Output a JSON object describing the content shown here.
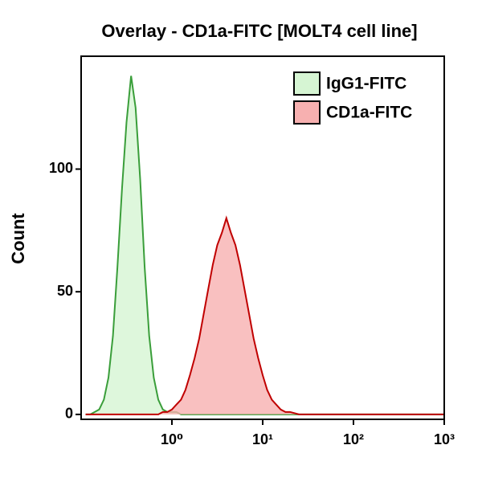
{
  "chart_data": {
    "type": "area",
    "title": "Overlay - CD1a-FITC [MOLT4 cell line]",
    "y_label": "Count",
    "x_scale": "log",
    "xlim": [
      0.1,
      1000
    ],
    "xticks": [
      {
        "value": 1,
        "label": "10⁰"
      },
      {
        "value": 10,
        "label": "10¹"
      },
      {
        "value": 100,
        "label": "10²"
      },
      {
        "value": 1000,
        "label": "10³"
      }
    ],
    "ylim": [
      -2,
      146
    ],
    "yticks": [
      0,
      50,
      100
    ],
    "legend": "top-right",
    "x": [
      0.112,
      0.126,
      0.141,
      0.158,
      0.178,
      0.2,
      0.224,
      0.251,
      0.282,
      0.316,
      0.355,
      0.398,
      0.447,
      0.501,
      0.562,
      0.631,
      0.708,
      0.794,
      0.891,
      1,
      1.12,
      1.26,
      1.41,
      1.58,
      1.78,
      2,
      2.24,
      2.51,
      2.82,
      3.16,
      3.55,
      3.98,
      4.47,
      5.01,
      5.62,
      6.31,
      7.08,
      7.94,
      8.91,
      10,
      11.2,
      12.6,
      14.1,
      15.8,
      17.8,
      20,
      25.1,
      39.8,
      100,
      316,
      1000
    ],
    "series": [
      {
        "name": "IgG1-FITC",
        "color": "#3a9e3a",
        "fill": "#d6f5d3",
        "values": [
          0,
          0,
          1,
          2,
          6,
          15,
          32,
          60,
          92,
          119,
          138,
          125,
          96,
          60,
          32,
          15,
          6,
          2,
          1,
          1,
          1,
          0,
          0,
          0,
          0,
          0,
          0,
          0,
          0,
          0,
          0,
          0,
          0,
          0,
          0,
          0,
          0,
          0,
          0,
          0,
          0,
          0,
          0,
          0,
          0,
          0,
          0,
          0,
          0,
          0,
          0
        ]
      },
      {
        "name": "CD1a-FITC",
        "color": "#c00000",
        "fill": "#f7b0b0",
        "values": [
          0,
          0,
          0,
          0,
          0,
          0,
          0,
          0,
          0,
          0,
          0,
          0,
          0,
          0,
          0,
          0,
          0,
          1,
          1,
          2,
          4,
          6,
          10,
          16,
          23,
          31,
          41,
          51,
          61,
          69,
          74,
          80,
          74,
          69,
          61,
          51,
          41,
          31,
          23,
          16,
          10,
          6,
          4,
          2,
          1,
          1,
          0,
          0,
          0,
          0,
          0
        ]
      }
    ]
  }
}
